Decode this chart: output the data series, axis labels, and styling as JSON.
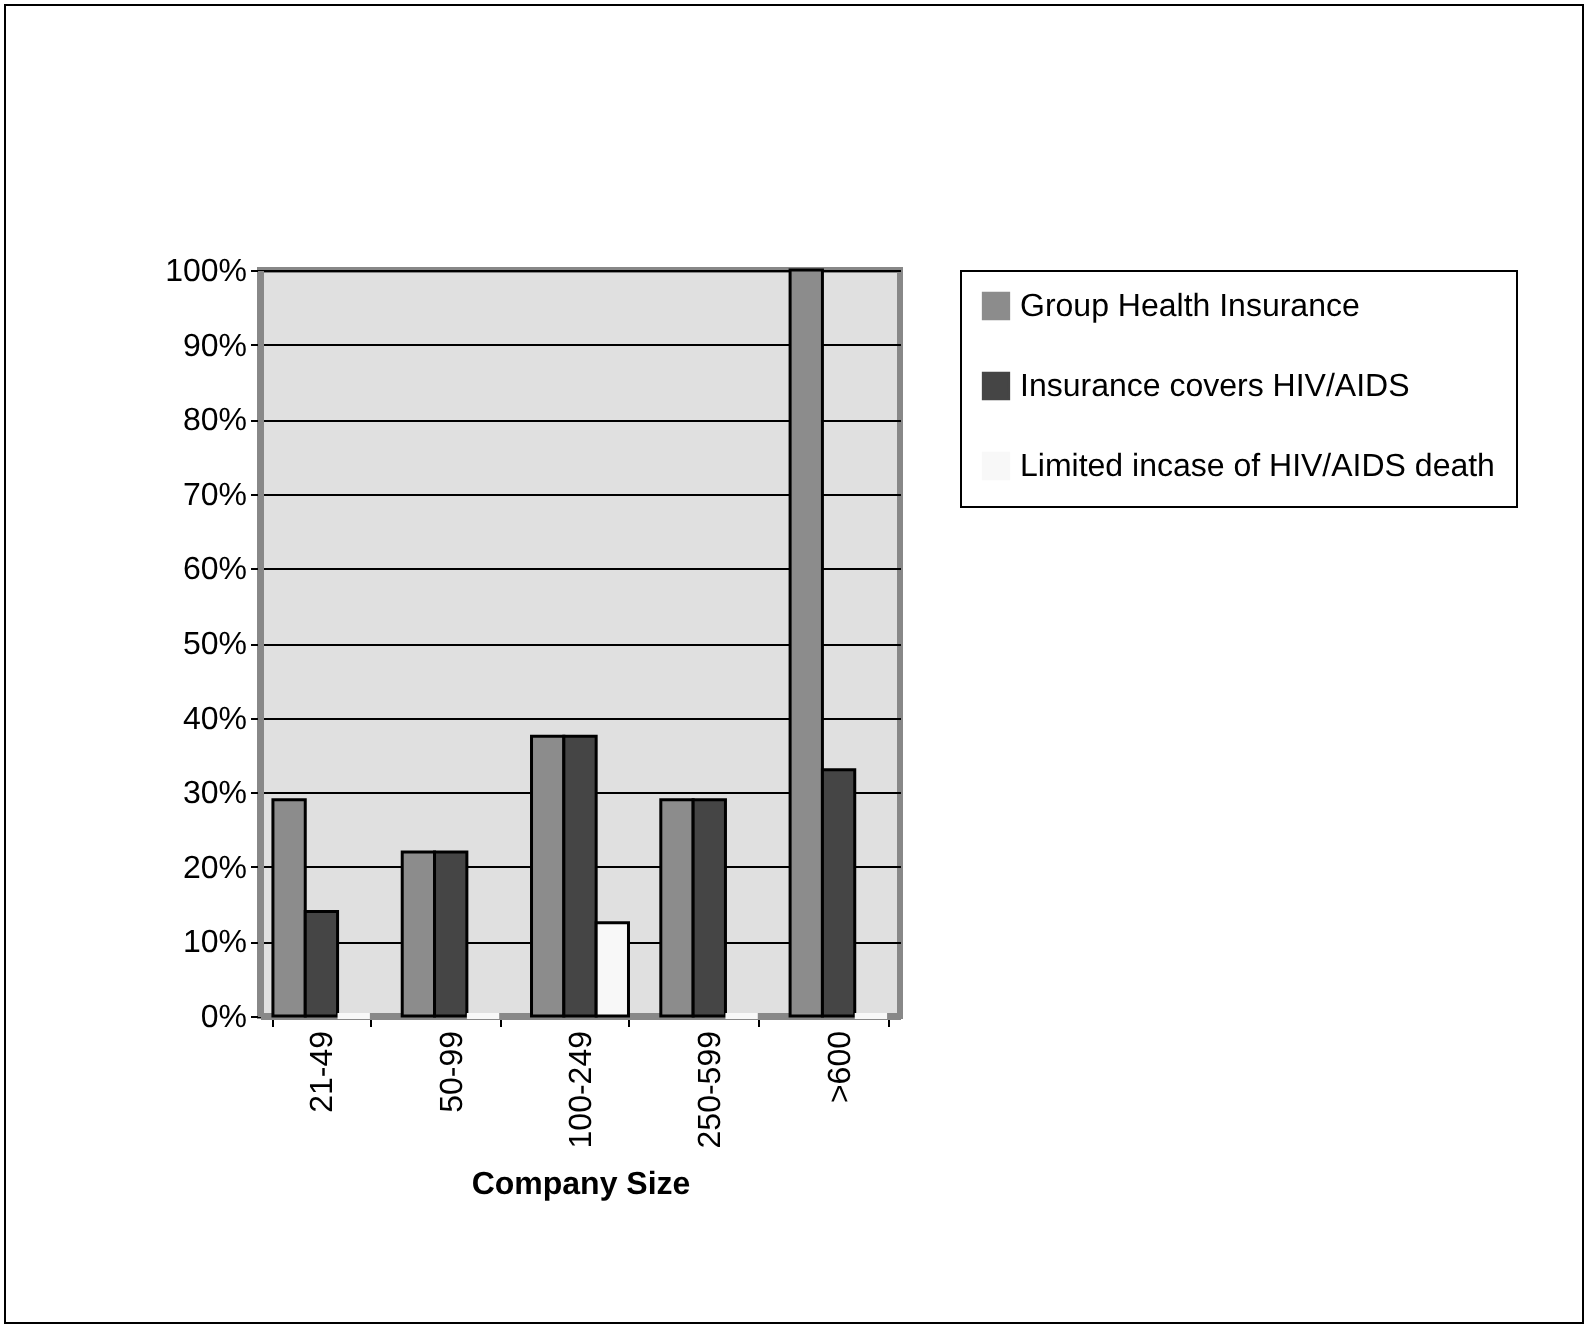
{
  "chart_data": {
    "type": "bar",
    "xlabel": "Company Size",
    "categories": [
      "21-49",
      "50-99",
      "100-249",
      "250-599",
      ">600"
    ],
    "series": [
      {
        "name": "Group Health Insurance",
        "color": "#8c8c8c",
        "values": [
          29,
          22,
          37.5,
          29,
          100
        ]
      },
      {
        "name": "Insurance covers HIV/AIDS",
        "color": "#454545",
        "values": [
          14,
          22,
          37.5,
          29,
          33
        ]
      },
      {
        "name": "Limited incase of HIV/AIDS death",
        "color": "#f8f8f8",
        "values": [
          0,
          0,
          12.5,
          0,
          0
        ]
      }
    ],
    "ylim": [
      0,
      100
    ],
    "yticks": [
      {
        "value": 0,
        "label": "0%"
      },
      {
        "value": 10,
        "label": "10%"
      },
      {
        "value": 20,
        "label": "20%"
      },
      {
        "value": 30,
        "label": "30%"
      },
      {
        "value": 40,
        "label": "40%"
      },
      {
        "value": 50,
        "label": "50%"
      },
      {
        "value": 60,
        "label": "60%"
      },
      {
        "value": 70,
        "label": "70%"
      },
      {
        "value": 80,
        "label": "80%"
      },
      {
        "value": 90,
        "label": "90%"
      },
      {
        "value": 100,
        "label": "100%"
      }
    ],
    "grid": "y",
    "legend": "right"
  }
}
